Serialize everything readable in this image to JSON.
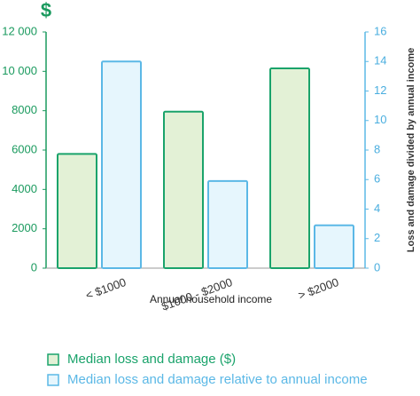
{
  "chart_data": {
    "type": "bar",
    "y_label": "$",
    "y2_label": "Loss and damage divided by annual income",
    "x_label": "Annual household income",
    "categories": [
      "< $1000",
      "$1000 - $2000",
      "> $2000"
    ],
    "series": [
      {
        "name": "Median loss and damage ($)",
        "color": "#1aa36b",
        "fill": "#e3f1d6",
        "values": [
          5800,
          7950,
          10150
        ]
      },
      {
        "name": "Median loss and damage relative to annual income",
        "color": "#5bb8e6",
        "fill": "#e6f6fd",
        "axis": "y2",
        "values": [
          14,
          5.9,
          2.9
        ]
      }
    ],
    "ylim": [
      0,
      12000
    ],
    "yticks": [
      0,
      2000,
      4000,
      6000,
      8000,
      {
        "value": 10000,
        "label": "10 000"
      },
      {
        "value": 12000,
        "label": "12 000"
      }
    ],
    "y2lim": [
      0,
      16
    ],
    "y2ticks": [
      0,
      2,
      4,
      6,
      8,
      10,
      12,
      14,
      16
    ],
    "grid": false
  }
}
